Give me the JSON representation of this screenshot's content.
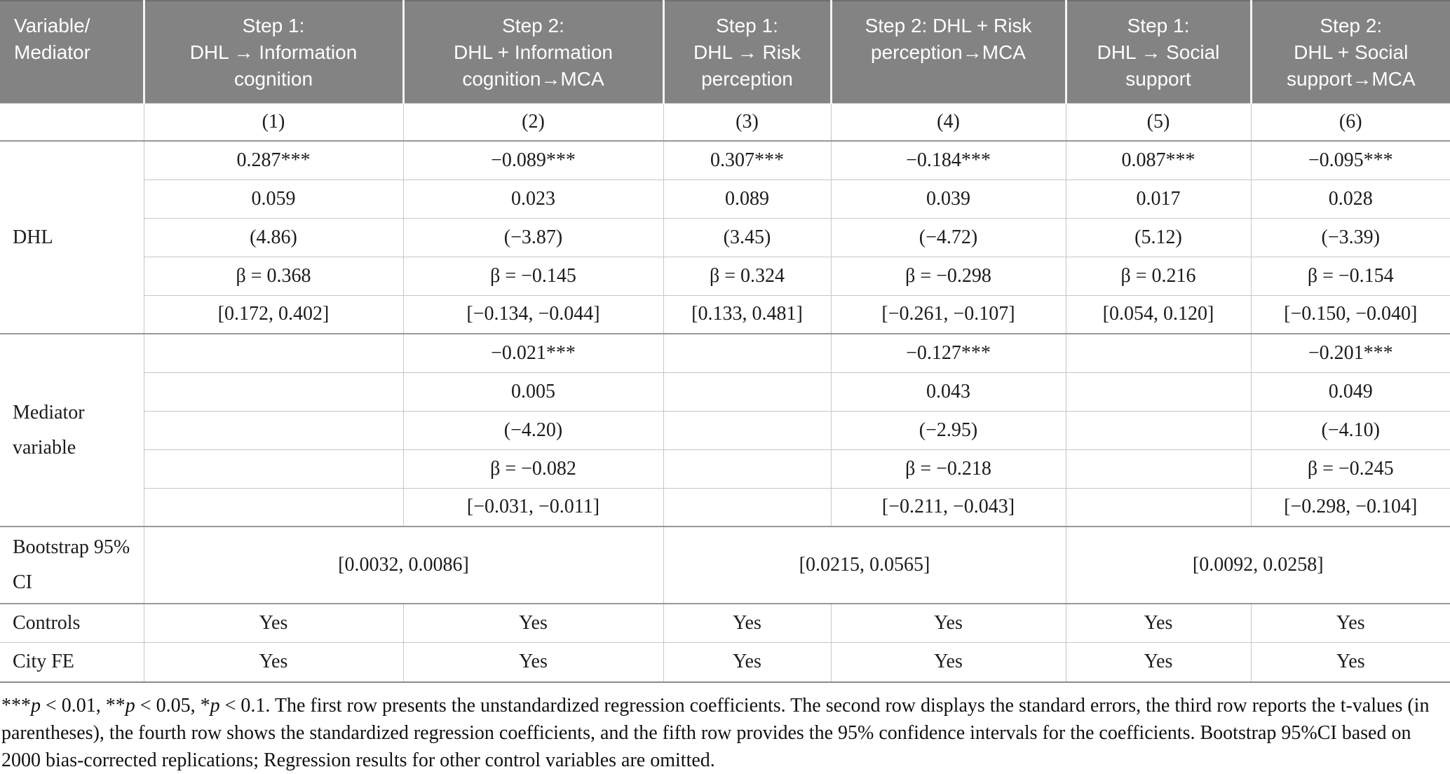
{
  "colors": {
    "header_bg": "#838383",
    "header_text": "#ffffff",
    "grid_line": "#c7c7c7",
    "section_line": "#989898",
    "body_text": "#1c1c1c"
  },
  "table": {
    "header": {
      "col0": "Variable/\nMediator",
      "cols": [
        "Step 1:\nDHL → Information\ncognition",
        "Step 2:\nDHL + Information\ncognition→MCA",
        "Step 1:\nDHL → Risk\nperception",
        "Step 2: DHL + Risk\nperception→MCA",
        "Step 1:\nDHL → Social\nsupport",
        "Step 2:\nDHL + Social\nsupport→MCA"
      ]
    },
    "model_numbers": [
      "(1)",
      "(2)",
      "(3)",
      "(4)",
      "(5)",
      "(6)"
    ],
    "dhl": {
      "label": "DHL",
      "coef": [
        "0.287***",
        "−0.089***",
        "0.307***",
        "−0.184***",
        "0.087***",
        "−0.095***"
      ],
      "se": [
        "0.059",
        "0.023",
        "0.089",
        "0.039",
        "0.017",
        "0.028"
      ],
      "t": [
        "(4.86)",
        "(−3.87)",
        "(3.45)",
        "(−4.72)",
        "(5.12)",
        "(−3.39)"
      ],
      "beta": [
        "β = 0.368",
        "β = −0.145",
        "β = 0.324",
        "β = −0.298",
        "β = 0.216",
        "β = −0.154"
      ],
      "ci": [
        "[0.172, 0.402]",
        "[−0.134, −0.044]",
        "[0.133, 0.481]",
        "[−0.261, −0.107]",
        "[0.054, 0.120]",
        "[−0.150, −0.040]"
      ]
    },
    "mediator": {
      "label": "Mediator\nvariable",
      "coef": [
        "",
        "−0.021***",
        "",
        "−0.127***",
        "",
        "−0.201***"
      ],
      "se": [
        "",
        "0.005",
        "",
        "0.043",
        "",
        "0.049"
      ],
      "t": [
        "",
        "(−4.20)",
        "",
        "(−2.95)",
        "",
        "(−4.10)"
      ],
      "beta": [
        "",
        "β = −0.082",
        "",
        "β = −0.218",
        "",
        "β = −0.245"
      ],
      "ci": [
        "",
        "[−0.031, −0.011]",
        "",
        "[−0.211, −0.043]",
        "",
        "[−0.298, −0.104]"
      ]
    },
    "bootstrap": {
      "label": "Bootstrap 95%\nCI",
      "values": [
        "[0.0032, 0.0086]",
        "[0.0215, 0.0565]",
        "[0.0092, 0.0258]"
      ]
    },
    "controls": {
      "label": "Controls",
      "values": [
        "Yes",
        "Yes",
        "Yes",
        "Yes",
        "Yes",
        "Yes"
      ]
    },
    "city_fe": {
      "label": "City FE",
      "values": [
        "Yes",
        "Yes",
        "Yes",
        "Yes",
        "Yes",
        "Yes"
      ]
    }
  },
  "footnote": {
    "segments": [
      {
        "t": "***"
      },
      {
        "t": "p",
        "i": true
      },
      {
        "t": " < 0.01, **"
      },
      {
        "t": "p",
        "i": true
      },
      {
        "t": " < 0.05, *"
      },
      {
        "t": "p",
        "i": true
      },
      {
        "t": " < 0.1. The first row presents the unstandardized regression coefficients. The second row displays the standard errors, the third row reports the t-values (in parentheses), the fourth row shows the standardized regression coefficients, and the fifth row provides the 95% confidence intervals for the coefficients. Bootstrap 95%CI based on 2000 bias-corrected replications; Regression results for other control variables are omitted."
      }
    ]
  }
}
